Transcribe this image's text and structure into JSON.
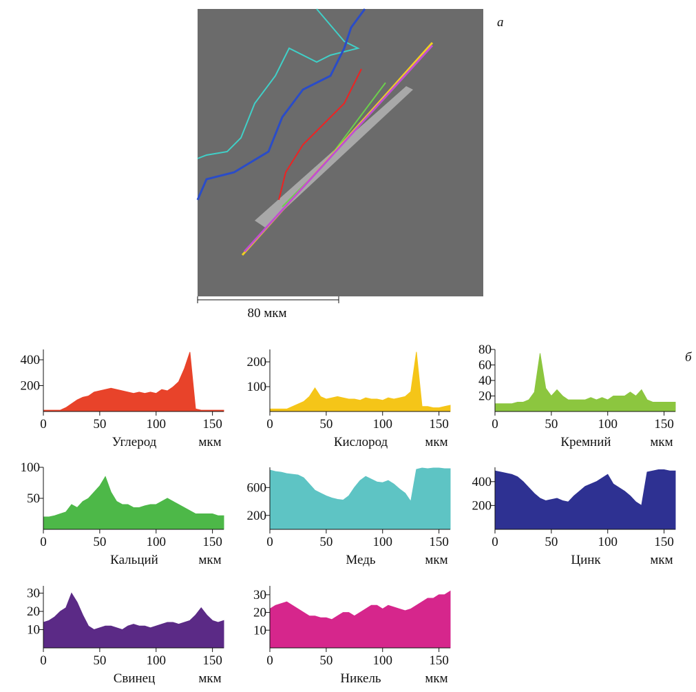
{
  "figure": {
    "label_a": "а",
    "label_b": "б",
    "scale_bar": "80 мкм"
  },
  "chart_data": [
    {
      "type": "area",
      "xlabel": "Углерод",
      "x_unit": "мкм",
      "color": "#e8432a",
      "xlim": [
        0,
        160
      ],
      "xticks": [
        0,
        50,
        100,
        150
      ],
      "ylim": [
        0,
        480
      ],
      "yticks": [
        200,
        400
      ],
      "x": [
        0,
        5,
        10,
        15,
        20,
        25,
        30,
        35,
        40,
        45,
        50,
        55,
        60,
        65,
        70,
        75,
        80,
        85,
        90,
        95,
        100,
        105,
        110,
        115,
        120,
        125,
        130,
        135,
        140,
        145,
        150,
        155,
        160
      ],
      "values": [
        10,
        10,
        10,
        10,
        30,
        60,
        90,
        110,
        120,
        150,
        160,
        170,
        180,
        170,
        160,
        150,
        140,
        150,
        140,
        150,
        140,
        170,
        160,
        190,
        230,
        330,
        460,
        20,
        10,
        10,
        10,
        10,
        10
      ]
    },
    {
      "type": "area",
      "xlabel": "Кислород",
      "x_unit": "мкм",
      "color": "#f5c518",
      "xlim": [
        0,
        160
      ],
      "xticks": [
        0,
        50,
        100,
        150
      ],
      "ylim": [
        0,
        250
      ],
      "yticks": [
        100,
        200
      ],
      "x": [
        0,
        5,
        10,
        15,
        20,
        25,
        30,
        35,
        40,
        45,
        50,
        55,
        60,
        65,
        70,
        75,
        80,
        85,
        90,
        95,
        100,
        105,
        110,
        115,
        120,
        125,
        130,
        135,
        140,
        145,
        150,
        155,
        160
      ],
      "values": [
        10,
        10,
        10,
        10,
        20,
        30,
        40,
        60,
        95,
        60,
        50,
        55,
        60,
        55,
        50,
        50,
        45,
        55,
        50,
        50,
        45,
        55,
        50,
        55,
        60,
        80,
        240,
        20,
        20,
        15,
        15,
        20,
        25
      ]
    },
    {
      "type": "area",
      "xlabel": "Кремний",
      "x_unit": "мкм",
      "color": "#8cc63f",
      "xlim": [
        0,
        160
      ],
      "xticks": [
        0,
        50,
        100,
        150
      ],
      "ylim": [
        0,
        80
      ],
      "yticks": [
        20,
        40,
        60,
        80
      ],
      "x": [
        0,
        5,
        10,
        15,
        20,
        25,
        30,
        35,
        40,
        45,
        50,
        55,
        60,
        65,
        70,
        75,
        80,
        85,
        90,
        95,
        100,
        105,
        110,
        115,
        120,
        125,
        130,
        135,
        140,
        145,
        150,
        155,
        160
      ],
      "values": [
        10,
        10,
        10,
        10,
        12,
        12,
        15,
        25,
        75,
        30,
        20,
        28,
        20,
        15,
        15,
        15,
        15,
        18,
        15,
        18,
        15,
        20,
        20,
        20,
        25,
        20,
        28,
        15,
        12,
        12,
        12,
        12,
        12
      ]
    },
    {
      "type": "area",
      "xlabel": "Кальций",
      "x_unit": "мкм",
      "color": "#4db848",
      "xlim": [
        0,
        160
      ],
      "xticks": [
        0,
        50,
        100,
        150
      ],
      "ylim": [
        0,
        100
      ],
      "yticks": [
        50,
        100
      ],
      "x": [
        0,
        5,
        10,
        15,
        20,
        25,
        30,
        35,
        40,
        45,
        50,
        55,
        60,
        65,
        70,
        75,
        80,
        85,
        90,
        95,
        100,
        105,
        110,
        115,
        120,
        125,
        130,
        135,
        140,
        145,
        150,
        155,
        160
      ],
      "values": [
        20,
        20,
        22,
        25,
        28,
        40,
        35,
        45,
        50,
        60,
        70,
        85,
        60,
        45,
        40,
        40,
        35,
        35,
        38,
        40,
        40,
        45,
        50,
        45,
        40,
        35,
        30,
        25,
        25,
        25,
        25,
        22,
        22
      ]
    },
    {
      "type": "area",
      "xlabel": "Медь",
      "x_unit": "мкм",
      "color": "#5ec4c4",
      "xlim": [
        0,
        160
      ],
      "xticks": [
        0,
        50,
        100,
        150
      ],
      "ylim": [
        0,
        890
      ],
      "yticks": [
        200,
        600
      ],
      "x": [
        0,
        5,
        10,
        15,
        20,
        25,
        30,
        35,
        40,
        45,
        50,
        55,
        60,
        65,
        70,
        75,
        80,
        85,
        90,
        95,
        100,
        105,
        110,
        115,
        120,
        125,
        130,
        135,
        140,
        145,
        150,
        155,
        160
      ],
      "values": [
        850,
        830,
        820,
        800,
        790,
        780,
        740,
        650,
        560,
        520,
        480,
        450,
        430,
        420,
        480,
        600,
        700,
        760,
        720,
        680,
        670,
        700,
        650,
        580,
        520,
        400,
        860,
        880,
        870,
        880,
        880,
        870,
        870
      ]
    },
    {
      "type": "area",
      "xlabel": "Цинк",
      "x_unit": "мкм",
      "color": "#2e3192",
      "xlim": [
        0,
        160
      ],
      "xticks": [
        0,
        50,
        100,
        150
      ],
      "ylim": [
        0,
        520
      ],
      "yticks": [
        200,
        400
      ],
      "x": [
        0,
        5,
        10,
        15,
        20,
        25,
        30,
        35,
        40,
        45,
        50,
        55,
        60,
        65,
        70,
        75,
        80,
        85,
        90,
        95,
        100,
        105,
        110,
        115,
        120,
        125,
        130,
        135,
        140,
        145,
        150,
        155,
        160
      ],
      "values": [
        490,
        480,
        470,
        460,
        440,
        400,
        350,
        300,
        260,
        240,
        250,
        260,
        240,
        230,
        280,
        320,
        360,
        380,
        400,
        430,
        460,
        380,
        350,
        320,
        280,
        230,
        200,
        480,
        490,
        500,
        500,
        490,
        490
      ]
    },
    {
      "type": "area",
      "xlabel": "Свинец",
      "x_unit": "мкм",
      "color": "#5b2a86",
      "xlim": [
        0,
        160
      ],
      "xticks": [
        0,
        50,
        100,
        150
      ],
      "ylim": [
        0,
        34
      ],
      "yticks": [
        10,
        20,
        30
      ],
      "x": [
        0,
        5,
        10,
        15,
        20,
        25,
        30,
        35,
        40,
        45,
        50,
        55,
        60,
        65,
        70,
        75,
        80,
        85,
        90,
        95,
        100,
        105,
        110,
        115,
        120,
        125,
        130,
        135,
        140,
        145,
        150,
        155,
        160
      ],
      "values": [
        14,
        15,
        17,
        20,
        22,
        30,
        25,
        18,
        12,
        10,
        11,
        12,
        12,
        11,
        10,
        12,
        13,
        12,
        12,
        11,
        12,
        13,
        14,
        14,
        13,
        14,
        15,
        18,
        22,
        18,
        15,
        14,
        15
      ]
    },
    {
      "type": "area",
      "xlabel": "Никель",
      "x_unit": "мкм",
      "color": "#d6268c",
      "xlim": [
        0,
        160
      ],
      "xticks": [
        0,
        50,
        100,
        150
      ],
      "ylim": [
        0,
        35
      ],
      "yticks": [
        10,
        20,
        30
      ],
      "x": [
        0,
        5,
        10,
        15,
        20,
        25,
        30,
        35,
        40,
        45,
        50,
        55,
        60,
        65,
        70,
        75,
        80,
        85,
        90,
        95,
        100,
        105,
        110,
        115,
        120,
        125,
        130,
        135,
        140,
        145,
        150,
        155,
        160
      ],
      "values": [
        22,
        24,
        25,
        26,
        24,
        22,
        20,
        18,
        18,
        17,
        17,
        16,
        18,
        20,
        20,
        18,
        20,
        22,
        24,
        24,
        22,
        24,
        23,
        22,
        21,
        22,
        24,
        26,
        28,
        28,
        30,
        30,
        32
      ]
    }
  ]
}
